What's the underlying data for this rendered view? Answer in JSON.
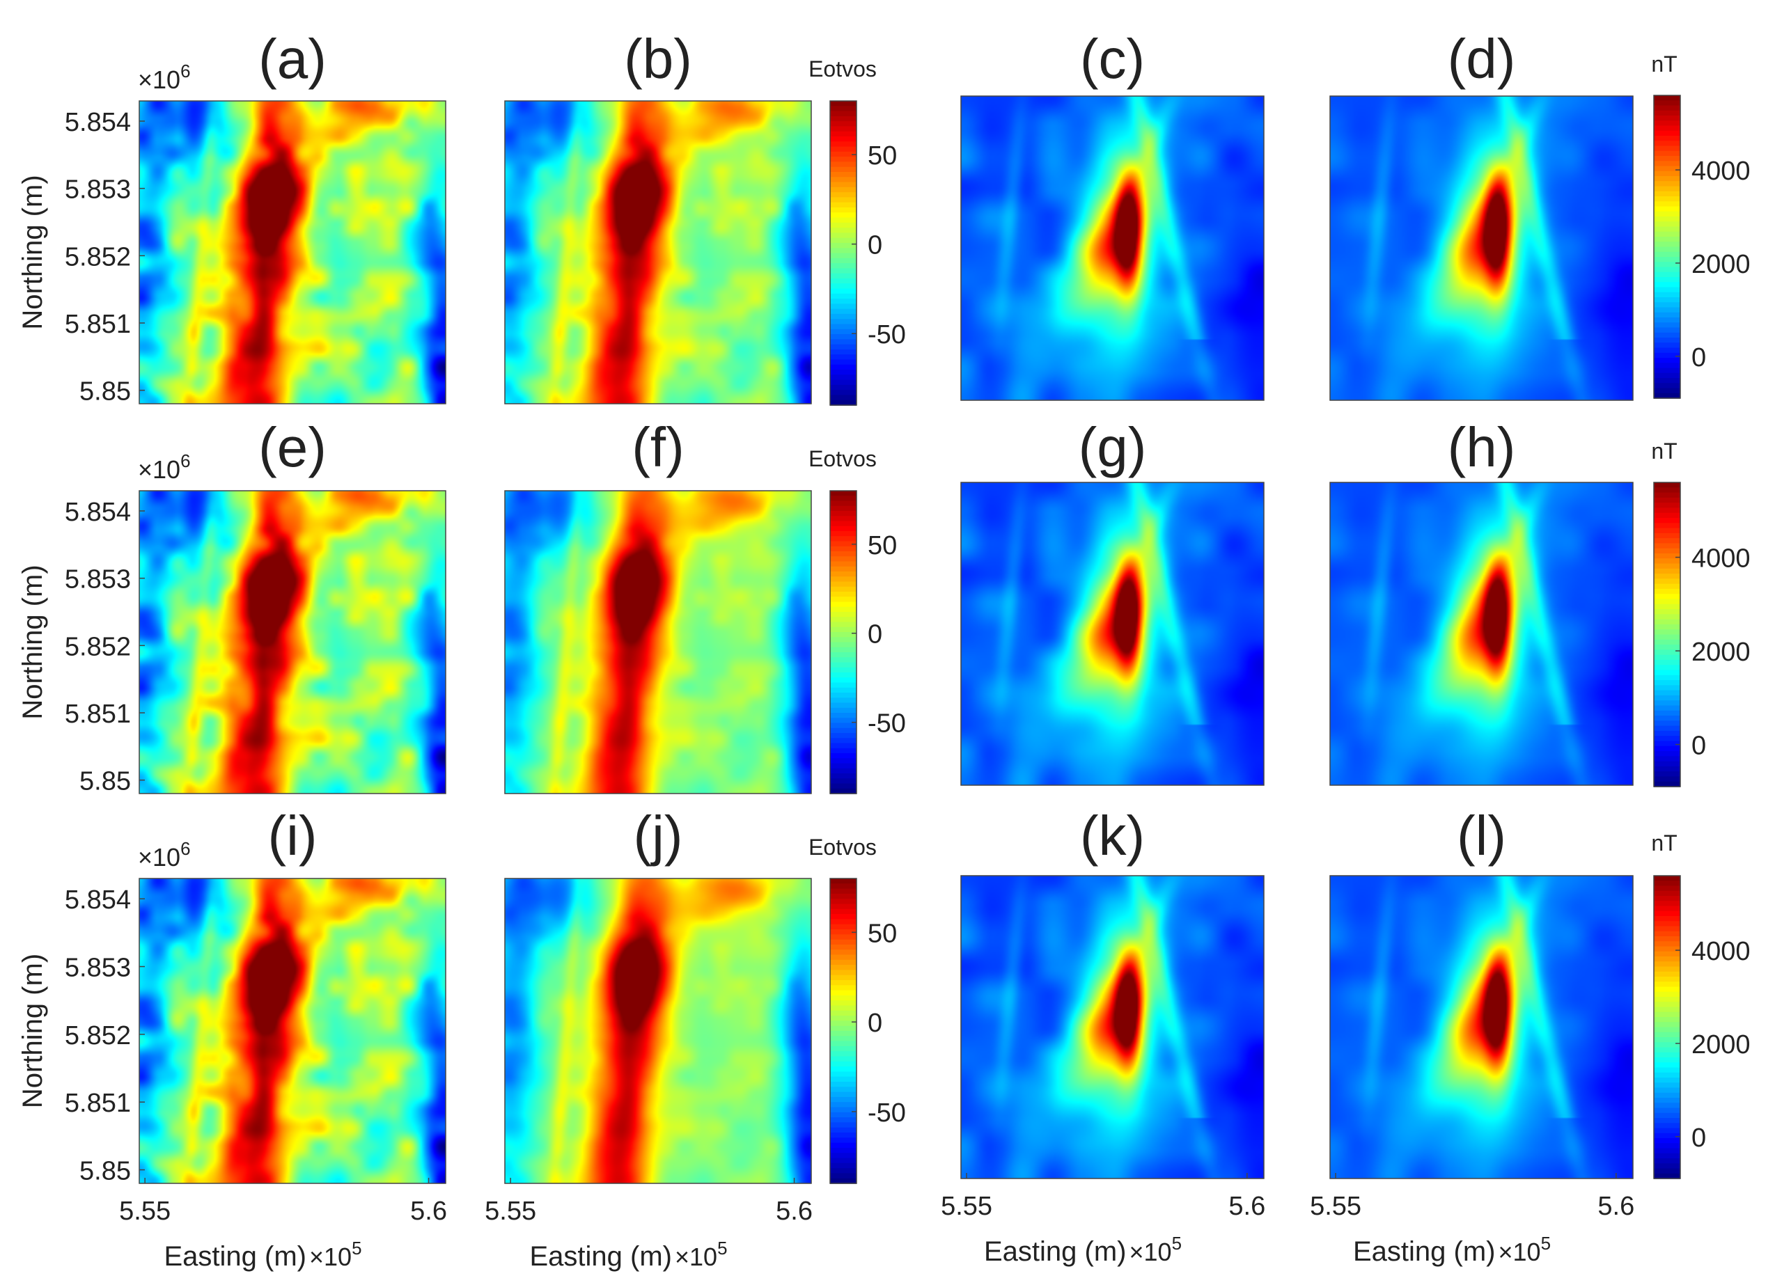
{
  "chart_data": {
    "type": "heatmap",
    "description_units": {
      "gravity": "Eotvos",
      "magnetic": "nT"
    },
    "axes": {
      "y_label": "Northing (m)",
      "y_exponent_label": "×10",
      "y_exponent_sup": "6",
      "y_ticks": [
        "5.854",
        "5.853",
        "5.852",
        "5.851",
        "5.85"
      ],
      "y_tick_values": [
        5.854,
        5.853,
        5.852,
        5.851,
        5.85
      ],
      "y_range": [
        5.8498,
        5.8543
      ],
      "x_label": "Easting (m)",
      "x_exponent_label": "×10",
      "x_exponent_sup": "5",
      "x_ticks": [
        "5.55",
        "5.6"
      ],
      "x_tick_values": [
        5.55,
        5.6
      ],
      "x_range": [
        5.549,
        5.603
      ]
    },
    "colorbars": {
      "gravity": {
        "unit": "Eotvos",
        "ticks": [
          "50",
          "0",
          "-50"
        ],
        "tick_values": [
          50,
          0,
          -50
        ],
        "range": [
          -90,
          80
        ]
      },
      "magnetic": {
        "unit": "nT",
        "ticks": [
          "4000",
          "2000",
          "0"
        ],
        "tick_values": [
          4000,
          2000,
          0
        ],
        "range": [
          -900,
          5600
        ]
      }
    },
    "panels": [
      {
        "label": "(a)",
        "field": "gravity",
        "smoothing": 0
      },
      {
        "label": "(b)",
        "field": "gravity",
        "smoothing": 1
      },
      {
        "label": "(c)",
        "field": "magnetic",
        "smoothing": 0
      },
      {
        "label": "(d)",
        "field": "magnetic",
        "smoothing": 1
      },
      {
        "label": "(e)",
        "field": "gravity",
        "smoothing": 0
      },
      {
        "label": "(f)",
        "field": "gravity",
        "smoothing": 2
      },
      {
        "label": "(g)",
        "field": "magnetic",
        "smoothing": 0
      },
      {
        "label": "(h)",
        "field": "magnetic",
        "smoothing": 1
      },
      {
        "label": "(i)",
        "field": "gravity",
        "smoothing": 0
      },
      {
        "label": "(j)",
        "field": "gravity",
        "smoothing": 3
      },
      {
        "label": "(k)",
        "field": "magnetic",
        "smoothing": 0
      },
      {
        "label": "(l)",
        "field": "magnetic",
        "smoothing": 1
      }
    ]
  }
}
